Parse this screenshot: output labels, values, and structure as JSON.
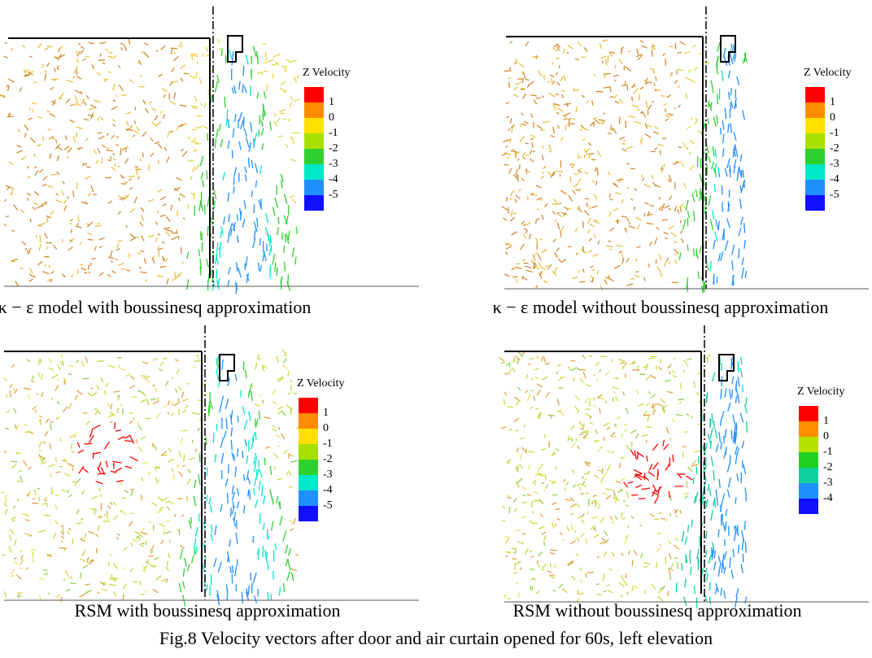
{
  "panels": [
    {
      "legend_title": "Z Velocity",
      "legend_labels": [
        "1",
        "0",
        "-1",
        "-2",
        "-3",
        "-4",
        "-5"
      ],
      "legend_colors": [
        "#ff0000",
        "#ff8c00",
        "#ffe000",
        "#a8e000",
        "#30d030",
        "#00e8c8",
        "#2090ff",
        "#1010ff"
      ],
      "caption": "κ − ε model with boussinesq approximation"
    },
    {
      "legend_title": "Z Velocity",
      "legend_labels": [
        "1",
        "0",
        "-1",
        "-2",
        "-3",
        "-4",
        "-5"
      ],
      "legend_colors": [
        "#ff0000",
        "#ff8c00",
        "#ffe000",
        "#a8e000",
        "#30d030",
        "#00e8c8",
        "#2090ff",
        "#1010ff"
      ],
      "caption": "κ − ε model without boussinesq approximation"
    },
    {
      "legend_title": "Z Velocity",
      "legend_labels": [
        "1",
        "0",
        "-1",
        "-2",
        "-3",
        "-4",
        "-5"
      ],
      "legend_colors": [
        "#ff0000",
        "#ff8c00",
        "#ffe000",
        "#a8e000",
        "#30d030",
        "#00e8c8",
        "#2090ff",
        "#1010ff"
      ],
      "caption": "RSM with boussinesq approximation"
    },
    {
      "legend_title": "Z Velocity",
      "legend_labels": [
        "1",
        "0",
        "-1",
        "-2",
        "-3",
        "-4"
      ],
      "legend_colors": [
        "#ff0000",
        "#ff9000",
        "#b8e000",
        "#20d020",
        "#10d0a0",
        "#2090ff",
        "#1010ff"
      ],
      "caption": "RSM without boussinesq approximation"
    }
  ],
  "figure_caption": "Fig.8 Velocity vectors after door and air curtain opened for 60s, left elevation"
}
